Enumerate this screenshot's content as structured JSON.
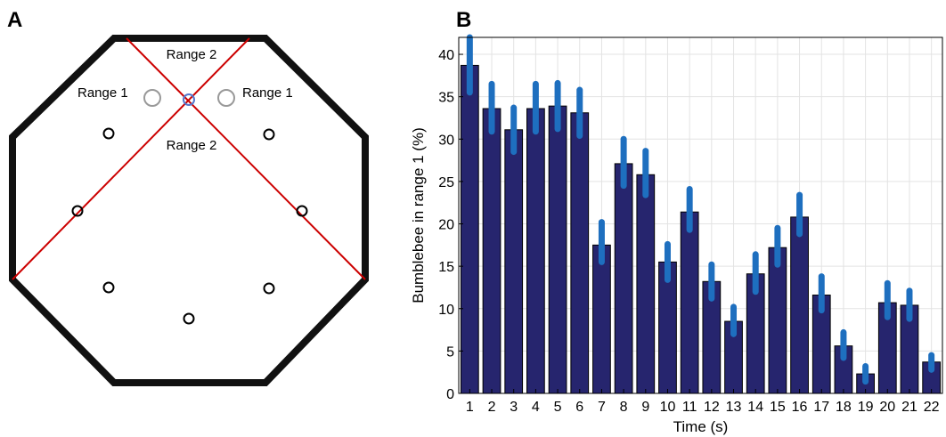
{
  "panels": {
    "a": {
      "letter": "A"
    },
    "b": {
      "letter": "B"
    }
  },
  "diagram": {
    "range1_label": "Range 1",
    "range2_label": "Range 2",
    "colors": {
      "wall": "#111111",
      "lines": "#cc0000",
      "marker_gray": "#999999",
      "center_marker": "#5577cc"
    }
  },
  "chart_data": {
    "type": "bar",
    "categories": [
      "1",
      "2",
      "3",
      "4",
      "5",
      "6",
      "7",
      "8",
      "9",
      "10",
      "11",
      "12",
      "13",
      "14",
      "15",
      "16",
      "17",
      "18",
      "19",
      "20",
      "21",
      "22"
    ],
    "values": [
      38.7,
      33.6,
      31.1,
      33.6,
      33.9,
      33.1,
      17.5,
      27.1,
      25.8,
      15.5,
      21.4,
      13.2,
      8.5,
      14.1,
      17.2,
      20.8,
      11.6,
      5.6,
      2.3,
      10.7,
      10.4,
      3.7
    ],
    "error_low": [
      35.5,
      30.9,
      28.5,
      30.9,
      31.2,
      30.4,
      15.5,
      24.5,
      23.4,
      13.4,
      19.3,
      11.2,
      7.0,
      12.0,
      15.2,
      18.8,
      9.8,
      4.2,
      1.4,
      9.0,
      8.8,
      2.8
    ],
    "error_high": [
      42.0,
      36.5,
      33.7,
      36.5,
      36.6,
      35.8,
      20.2,
      30.0,
      28.6,
      17.6,
      24.1,
      15.2,
      10.2,
      16.4,
      19.5,
      23.4,
      13.8,
      7.2,
      3.2,
      13.0,
      12.1,
      4.5
    ],
    "xlabel": "Time (s)",
    "ylabel": "Bumblebee in range 1 (%)",
    "ylim": [
      0,
      42
    ],
    "yticks": [
      0,
      5,
      10,
      15,
      20,
      25,
      30,
      35,
      40
    ],
    "grid": true,
    "colors": {
      "bar": "#26256e",
      "error": "#1e6fbf"
    }
  }
}
